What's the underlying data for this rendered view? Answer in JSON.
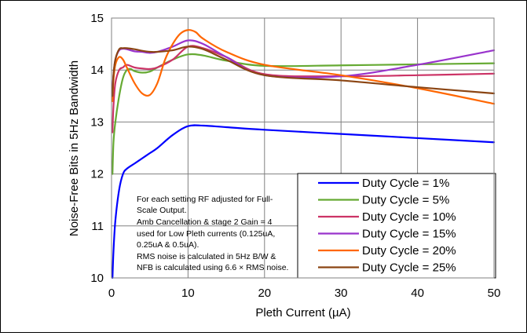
{
  "chart_data": {
    "type": "line",
    "xlabel": "Pleth Current (µA)",
    "ylabel": "Noise-Free Bits in 5Hz Bandwidth",
    "xlim": [
      0,
      50
    ],
    "ylim": [
      10,
      15
    ],
    "x_ticks": [
      "0",
      "10",
      "20",
      "30",
      "40",
      "50"
    ],
    "y_ticks": [
      "10",
      "11",
      "12",
      "13",
      "14",
      "15"
    ],
    "grid": true,
    "legend_position": "bottom-right",
    "annotation": [
      "For each setting RF adjusted for Full-",
      "Scale Output.",
      "Amb Cancellation & stage 2 Gain = 4",
      "used for Low Pleth currents (0.125uA,",
      "0.25uA & 0.5uA).",
      "RMS noise is calculated in 5Hz B/W &",
      "NFB is calculated using 6.6 × RMS noise."
    ],
    "series": [
      {
        "name": "Duty Cycle = 1%",
        "color": "#0000ff",
        "x": [
          0.125,
          0.25,
          0.5,
          1,
          1.5,
          2,
          3,
          4,
          5,
          6,
          8,
          10,
          12,
          15,
          20,
          30,
          40,
          50
        ],
        "y": [
          10.0,
          10.5,
          11.1,
          11.7,
          12.0,
          12.1,
          12.2,
          12.3,
          12.4,
          12.5,
          12.75,
          12.92,
          12.93,
          12.9,
          12.85,
          12.77,
          12.69,
          12.61
        ]
      },
      {
        "name": "Duty Cycle = 5%",
        "color": "#66aa33",
        "x": [
          0.125,
          0.25,
          0.5,
          1,
          1.5,
          2,
          2.5,
          3,
          4,
          5,
          6,
          8,
          10,
          12,
          15,
          20,
          30,
          40,
          50
        ],
        "y": [
          12.0,
          12.6,
          13.0,
          13.5,
          13.85,
          14.0,
          14.02,
          13.98,
          13.95,
          13.97,
          14.05,
          14.2,
          14.3,
          14.28,
          14.18,
          14.08,
          14.09,
          14.11,
          14.13
        ]
      },
      {
        "name": "Duty Cycle = 10%",
        "color": "#cc3366",
        "x": [
          0.125,
          0.25,
          0.5,
          1,
          1.5,
          2,
          3,
          4,
          5,
          6,
          8,
          10,
          12,
          15,
          20,
          30,
          40,
          50
        ],
        "y": [
          12.8,
          13.3,
          13.75,
          14.0,
          14.05,
          14.1,
          14.05,
          14.03,
          14.02,
          14.05,
          14.2,
          14.45,
          14.42,
          14.25,
          13.92,
          13.88,
          13.9,
          13.93
        ]
      },
      {
        "name": "Duty Cycle = 15%",
        "color": "#9933cc",
        "x": [
          0.125,
          0.25,
          0.5,
          1,
          1.5,
          2,
          3,
          4,
          5,
          6,
          8,
          10,
          12,
          15,
          20,
          30,
          40,
          50
        ],
        "y": [
          13.6,
          13.9,
          14.2,
          14.38,
          14.41,
          14.4,
          14.36,
          14.35,
          14.33,
          14.35,
          14.45,
          14.57,
          14.5,
          14.25,
          13.9,
          13.88,
          14.1,
          14.38
        ]
      },
      {
        "name": "Duty Cycle = 20%",
        "color": "#ff6600",
        "x": [
          0.125,
          0.25,
          0.5,
          1,
          1.5,
          2,
          3,
          4,
          5,
          6,
          7,
          8,
          9,
          10,
          11,
          12,
          15,
          20,
          30,
          40,
          50
        ],
        "y": [
          13.4,
          13.8,
          14.1,
          14.25,
          14.2,
          14.05,
          13.75,
          13.55,
          13.52,
          13.75,
          14.2,
          14.5,
          14.7,
          14.77,
          14.73,
          14.6,
          14.35,
          14.1,
          13.9,
          13.65,
          13.35
        ]
      },
      {
        "name": "Duty Cycle = 25%",
        "color": "#8b4513",
        "x": [
          0.125,
          0.25,
          0.5,
          1,
          1.5,
          2,
          3,
          4,
          5,
          6,
          8,
          10,
          12,
          15,
          20,
          30,
          40,
          50
        ],
        "y": [
          13.5,
          13.9,
          14.2,
          14.4,
          14.42,
          14.42,
          14.4,
          14.37,
          14.35,
          14.35,
          14.38,
          14.45,
          14.4,
          14.2,
          13.9,
          13.8,
          13.67,
          13.55
        ]
      }
    ]
  }
}
